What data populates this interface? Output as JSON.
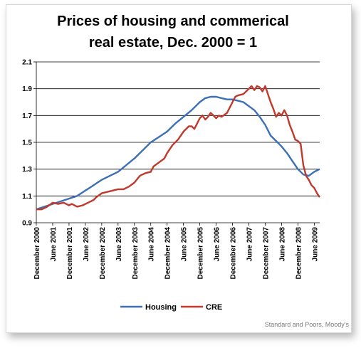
{
  "chart_data": {
    "type": "line",
    "title_line1": "Prices of housing and commerical",
    "title_line2": "real estate, Dec. 2000 = 1",
    "xlabel": "",
    "ylabel": "",
    "ylim": [
      0.9,
      2.1
    ],
    "yticks": [
      0.9,
      1.1,
      1.3,
      1.5,
      1.7,
      1.9,
      2.1
    ],
    "ytick_labels": [
      "0.9",
      "1.1",
      "1.3",
      "1.5",
      "1.7",
      "1.9",
      "2.1"
    ],
    "xticks": [
      {
        "label": "December 2000",
        "month": 0
      },
      {
        "label": "June 2001",
        "month": 6
      },
      {
        "label": "December 2001",
        "month": 12
      },
      {
        "label": "June 2002",
        "month": 18
      },
      {
        "label": "December 2002",
        "month": 24
      },
      {
        "label": "June 2003",
        "month": 30
      },
      {
        "label": "December 2003",
        "month": 36
      },
      {
        "label": "June 2004",
        "month": 42
      },
      {
        "label": "December 2004",
        "month": 48
      },
      {
        "label": "June 2005",
        "month": 54
      },
      {
        "label": "December 2005",
        "month": 60
      },
      {
        "label": "June 2006",
        "month": 66
      },
      {
        "label": "December 2006",
        "month": 72
      },
      {
        "label": "June 2007",
        "month": 78
      },
      {
        "label": "December 2007",
        "month": 84
      },
      {
        "label": "June 2008",
        "month": 90
      },
      {
        "label": "December 2008",
        "month": 96
      },
      {
        "label": "June 2009",
        "month": 102
      }
    ],
    "grid": "horizontal",
    "legend_position": "bottom",
    "series": [
      {
        "name": "Housing",
        "color": "#3b6fb6",
        "points": [
          [
            0,
            1.0
          ],
          [
            3,
            1.02
          ],
          [
            6,
            1.04
          ],
          [
            9,
            1.06
          ],
          [
            12,
            1.08
          ],
          [
            15,
            1.1
          ],
          [
            18,
            1.14
          ],
          [
            21,
            1.18
          ],
          [
            24,
            1.22
          ],
          [
            27,
            1.25
          ],
          [
            30,
            1.28
          ],
          [
            33,
            1.33
          ],
          [
            36,
            1.38
          ],
          [
            39,
            1.44
          ],
          [
            42,
            1.5
          ],
          [
            45,
            1.54
          ],
          [
            48,
            1.58
          ],
          [
            51,
            1.64
          ],
          [
            54,
            1.69
          ],
          [
            57,
            1.74
          ],
          [
            60,
            1.8
          ],
          [
            62,
            1.83
          ],
          [
            64,
            1.84
          ],
          [
            66,
            1.84
          ],
          [
            68,
            1.83
          ],
          [
            70,
            1.82
          ],
          [
            72,
            1.82
          ],
          [
            74,
            1.81
          ],
          [
            76,
            1.8
          ],
          [
            78,
            1.77
          ],
          [
            80,
            1.74
          ],
          [
            82,
            1.69
          ],
          [
            84,
            1.63
          ],
          [
            86,
            1.55
          ],
          [
            88,
            1.51
          ],
          [
            90,
            1.47
          ],
          [
            92,
            1.42
          ],
          [
            94,
            1.36
          ],
          [
            96,
            1.3
          ],
          [
            98,
            1.26
          ],
          [
            100,
            1.25
          ],
          [
            102,
            1.28
          ],
          [
            104,
            1.3
          ]
        ]
      },
      {
        "name": "CRE",
        "color": "#c0392b",
        "points": [
          [
            0,
            1.0
          ],
          [
            2,
            1.0
          ],
          [
            4,
            1.02
          ],
          [
            6,
            1.05
          ],
          [
            8,
            1.04
          ],
          [
            10,
            1.05
          ],
          [
            12,
            1.03
          ],
          [
            13,
            1.04
          ],
          [
            15,
            1.02
          ],
          [
            17,
            1.03
          ],
          [
            19,
            1.05
          ],
          [
            21,
            1.07
          ],
          [
            22,
            1.09
          ],
          [
            24,
            1.12
          ],
          [
            26,
            1.13
          ],
          [
            28,
            1.14
          ],
          [
            30,
            1.15
          ],
          [
            32,
            1.15
          ],
          [
            34,
            1.17
          ],
          [
            36,
            1.2
          ],
          [
            38,
            1.25
          ],
          [
            40,
            1.27
          ],
          [
            42,
            1.28
          ],
          [
            43,
            1.32
          ],
          [
            45,
            1.35
          ],
          [
            47,
            1.38
          ],
          [
            48,
            1.42
          ],
          [
            50,
            1.48
          ],
          [
            52,
            1.52
          ],
          [
            54,
            1.58
          ],
          [
            56,
            1.62
          ],
          [
            57,
            1.62
          ],
          [
            58,
            1.6
          ],
          [
            59,
            1.64
          ],
          [
            60,
            1.68
          ],
          [
            61,
            1.7
          ],
          [
            62,
            1.67
          ],
          [
            63,
            1.69
          ],
          [
            64,
            1.72
          ],
          [
            65,
            1.7
          ],
          [
            66,
            1.68
          ],
          [
            67,
            1.7
          ],
          [
            68,
            1.69
          ],
          [
            70,
            1.72
          ],
          [
            72,
            1.8
          ],
          [
            73,
            1.84
          ],
          [
            74,
            1.85
          ],
          [
            76,
            1.86
          ],
          [
            78,
            1.9
          ],
          [
            79,
            1.92
          ],
          [
            80,
            1.89
          ],
          [
            81,
            1.92
          ],
          [
            82,
            1.91
          ],
          [
            83,
            1.88
          ],
          [
            84,
            1.92
          ],
          [
            85,
            1.86
          ],
          [
            86,
            1.8
          ],
          [
            87,
            1.75
          ],
          [
            88,
            1.69
          ],
          [
            89,
            1.72
          ],
          [
            90,
            1.7
          ],
          [
            91,
            1.74
          ],
          [
            92,
            1.7
          ],
          [
            93,
            1.63
          ],
          [
            94,
            1.58
          ],
          [
            95,
            1.52
          ],
          [
            96,
            1.51
          ],
          [
            97,
            1.49
          ],
          [
            98,
            1.33
          ],
          [
            99,
            1.25
          ],
          [
            100,
            1.22
          ],
          [
            101,
            1.18
          ],
          [
            102,
            1.16
          ],
          [
            103,
            1.12
          ],
          [
            104,
            1.09
          ]
        ]
      }
    ],
    "source": "Standard and Poors, Moody's"
  }
}
